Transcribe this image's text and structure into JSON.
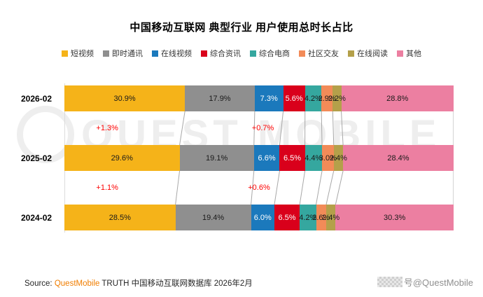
{
  "title": "中国移动互联网 典型行业 用户使用总时长占比",
  "colors": {
    "accent_red": "#FE0000",
    "source_orange": "#F07D00",
    "connector_gray": "#A8A8A8",
    "axis_gray": "#DCDCDC"
  },
  "legend": [
    {
      "label": "短视频",
      "color": "#F5B319",
      "text": "dark"
    },
    {
      "label": "即时通讯",
      "color": "#8F8F8F",
      "text": "dark"
    },
    {
      "label": "在线视频",
      "color": "#1B79BC",
      "text": "light"
    },
    {
      "label": "综合资讯",
      "color": "#D9001B",
      "text": "light"
    },
    {
      "label": "综合电商",
      "color": "#35A79F",
      "text": "dark"
    },
    {
      "label": "社区交友",
      "color": "#F28B58",
      "text": "dark"
    },
    {
      "label": "在线阅读",
      "color": "#B4A04A",
      "text": "dark"
    },
    {
      "label": "其他",
      "color": "#EC7FA1",
      "text": "dark"
    }
  ],
  "chart_data": {
    "type": "bar",
    "variant": "horizontal-stacked-100pct",
    "title": "中国移动互联网 典型行业 用户使用总时长占比",
    "unit": "%",
    "x_range": [
      0,
      100
    ],
    "series_labels": [
      "短视频",
      "即时通讯",
      "在线视频",
      "综合资讯",
      "综合电商",
      "社区交友",
      "在线阅读",
      "其他"
    ],
    "categories": [
      "2026-02",
      "2025-02",
      "2024-02"
    ],
    "rows": [
      [
        30.9,
        17.9,
        7.3,
        5.6,
        4.2,
        2.9,
        2.2,
        28.8
      ],
      [
        29.6,
        19.1,
        6.6,
        6.5,
        4.4,
        3.0,
        2.4,
        28.4
      ],
      [
        28.5,
        19.4,
        6.0,
        6.5,
        4.2,
        2.6,
        2.4,
        30.3
      ]
    ],
    "value_suffix": "%",
    "change_labels": [
      {
        "gap": 0,
        "items": [
          {
            "text": "+1.3%",
            "series": "短视频",
            "x_pct": 11
          },
          {
            "text": "+0.7%",
            "series": "在线视频",
            "x_pct": 51
          }
        ]
      },
      {
        "gap": 1,
        "items": [
          {
            "text": "+1.1%",
            "series": "短视频",
            "x_pct": 11
          },
          {
            "text": "+0.6%",
            "series": "在线视频",
            "x_pct": 50
          }
        ]
      }
    ]
  },
  "watermark": {
    "text": "QUEST MOBILE"
  },
  "source": {
    "prefix": "Source:",
    "brand": "QuestMobile",
    "suffix": "TRUTH 中国移动互联网数据库 2026年2月"
  },
  "footer_right": {
    "handle": "号@QuestMobile"
  }
}
